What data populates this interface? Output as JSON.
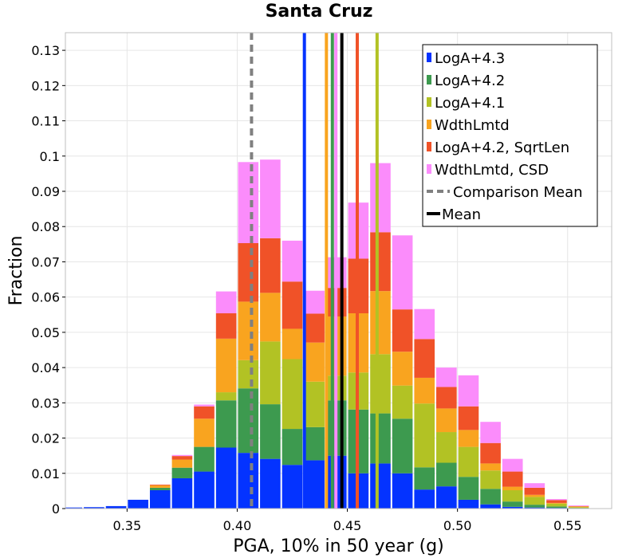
{
  "chart_data": {
    "type": "bar",
    "stacked": true,
    "title": "Santa Cruz",
    "xlabel": "PGA, 10% in 50 year (g)",
    "ylabel": "Fraction",
    "xlim": [
      0.322,
      0.57
    ],
    "ylim": [
      0,
      0.135
    ],
    "bin_width": 0.01,
    "x_ticks": [
      0.35,
      0.4,
      0.45,
      0.5,
      0.55
    ],
    "x_tick_labels": [
      "0.35",
      "0.40",
      "0.45",
      "0.50",
      "0.55"
    ],
    "y_ticks": [
      0,
      0.01,
      0.02,
      0.03,
      0.04,
      0.05,
      0.06,
      0.07,
      0.08,
      0.09,
      0.1,
      0.11,
      0.12,
      0.13
    ],
    "y_tick_labels": [
      "0",
      "0.01",
      "0.02",
      "0.03",
      "0.04",
      "0.05",
      "0.06",
      "0.07",
      "0.08",
      "0.09",
      "0.1",
      "0.11",
      "0.12",
      "0.13"
    ],
    "bin_centers": [
      0.325,
      0.335,
      0.345,
      0.355,
      0.365,
      0.375,
      0.385,
      0.395,
      0.405,
      0.415,
      0.425,
      0.435,
      0.445,
      0.455,
      0.465,
      0.475,
      0.485,
      0.495,
      0.505,
      0.515,
      0.525,
      0.535,
      0.545,
      0.555,
      0.565
    ],
    "series": [
      {
        "name": "LogA+4.3",
        "color": "#0433ff",
        "values": [
          0.0003,
          0.0004,
          0.0007,
          0.0025,
          0.0052,
          0.0086,
          0.0105,
          0.0173,
          0.0158,
          0.0141,
          0.0124,
          0.0137,
          0.015,
          0.01,
          0.0128,
          0.01,
          0.0054,
          0.0063,
          0.0025,
          0.0012,
          0.0005,
          0.0003,
          0.0002,
          0.0001,
          0.0
        ]
      },
      {
        "name": "LogA+4.2",
        "color": "#3d9a4f",
        "values": [
          0.0,
          0.0,
          0.0,
          0.0,
          0.0007,
          0.003,
          0.007,
          0.0134,
          0.0183,
          0.0155,
          0.0102,
          0.0094,
          0.0157,
          0.0181,
          0.0142,
          0.0155,
          0.0063,
          0.0067,
          0.0065,
          0.0044,
          0.0015,
          0.0008,
          0.0004,
          0.0001,
          0.0
        ]
      },
      {
        "name": "LogA+4.1",
        "color": "#b2c224",
        "values": [
          0.0,
          0.0,
          0.0,
          0.0,
          0.0,
          0.0,
          0.0,
          0.0023,
          0.008,
          0.0178,
          0.0198,
          0.0129,
          0.007,
          0.0105,
          0.0168,
          0.0094,
          0.0181,
          0.0087,
          0.0085,
          0.0052,
          0.0032,
          0.0022,
          0.0008,
          0.0002,
          0.0
        ]
      },
      {
        "name": "WdthLmtd",
        "color": "#f9a41f",
        "values": [
          0.0,
          0.0,
          0.0,
          0.0,
          0.0007,
          0.0023,
          0.008,
          0.0152,
          0.0166,
          0.0138,
          0.0086,
          0.0111,
          0.0168,
          0.0168,
          0.0179,
          0.0096,
          0.0073,
          0.0067,
          0.0048,
          0.002,
          0.001,
          0.0006,
          0.0002,
          0.0002,
          0.0
        ]
      },
      {
        "name": "LogA+4.2, SqrtLen",
        "color": "#f05228",
        "values": [
          0.0,
          0.0,
          0.0,
          0.0,
          0.0002,
          0.001,
          0.0035,
          0.0072,
          0.0166,
          0.0155,
          0.0134,
          0.0082,
          0.0081,
          0.0155,
          0.0167,
          0.012,
          0.011,
          0.0061,
          0.0067,
          0.0058,
          0.0043,
          0.002,
          0.0008,
          0.0001,
          0.0
        ]
      },
      {
        "name": "WdthLmtd, CSD",
        "color": "#fb8cfb",
        "values": [
          0.0,
          0.0,
          0.0,
          0.0,
          0.0,
          0.0003,
          0.0005,
          0.0062,
          0.023,
          0.0223,
          0.0116,
          0.0065,
          0.0087,
          0.0159,
          0.0196,
          0.021,
          0.0085,
          0.0055,
          0.0088,
          0.006,
          0.0036,
          0.0013,
          0.0003,
          0.0002,
          0.0
        ]
      }
    ],
    "vlines": [
      {
        "name": "LogA+4.3",
        "x": 0.4305,
        "color": "#0433ff",
        "dash": false,
        "ymax": "top"
      },
      {
        "name": "WdthLmtd",
        "x": 0.4405,
        "color": "#f9a41f",
        "dash": false,
        "ymax": "top"
      },
      {
        "name": "LogA+4.2",
        "x": 0.4432,
        "color": "#3d9a4f",
        "dash": false,
        "ymax": "top"
      },
      {
        "name": "WdthLmtd, CSD",
        "x": 0.4448,
        "color": "#fb8cfb",
        "dash": false,
        "ymax": "top"
      },
      {
        "name": "LogA+4.2, SqrtLen",
        "x": 0.4545,
        "color": "#f05228",
        "dash": false,
        "ymax": "top"
      },
      {
        "name": "LogA+4.1",
        "x": 0.4635,
        "color": "#b2c224",
        "dash": false,
        "ymax": "top"
      },
      {
        "name": "Comparison Mean",
        "x": 0.4065,
        "color": "#808080",
        "dash": true,
        "ymax": "top"
      },
      {
        "name": "Mean",
        "x": 0.4475,
        "color": "#000000",
        "dash": false,
        "ymax": "top"
      }
    ],
    "legend": {
      "position": "top-right",
      "entries": [
        {
          "label": "LogA+4.3",
          "color": "#0433ff",
          "kind": "box"
        },
        {
          "label": "LogA+4.2",
          "color": "#3d9a4f",
          "kind": "box"
        },
        {
          "label": "LogA+4.1",
          "color": "#b2c224",
          "kind": "box"
        },
        {
          "label": "WdthLmtd",
          "color": "#f9a41f",
          "kind": "box"
        },
        {
          "label": "LogA+4.2, SqrtLen",
          "color": "#f05228",
          "kind": "box"
        },
        {
          "label": "WdthLmtd, CSD",
          "color": "#fb8cfb",
          "kind": "box"
        },
        {
          "label": "Comparison Mean",
          "color": "#808080",
          "kind": "dash"
        },
        {
          "label": "Mean",
          "color": "#000000",
          "kind": "line"
        }
      ]
    },
    "grid": true
  }
}
